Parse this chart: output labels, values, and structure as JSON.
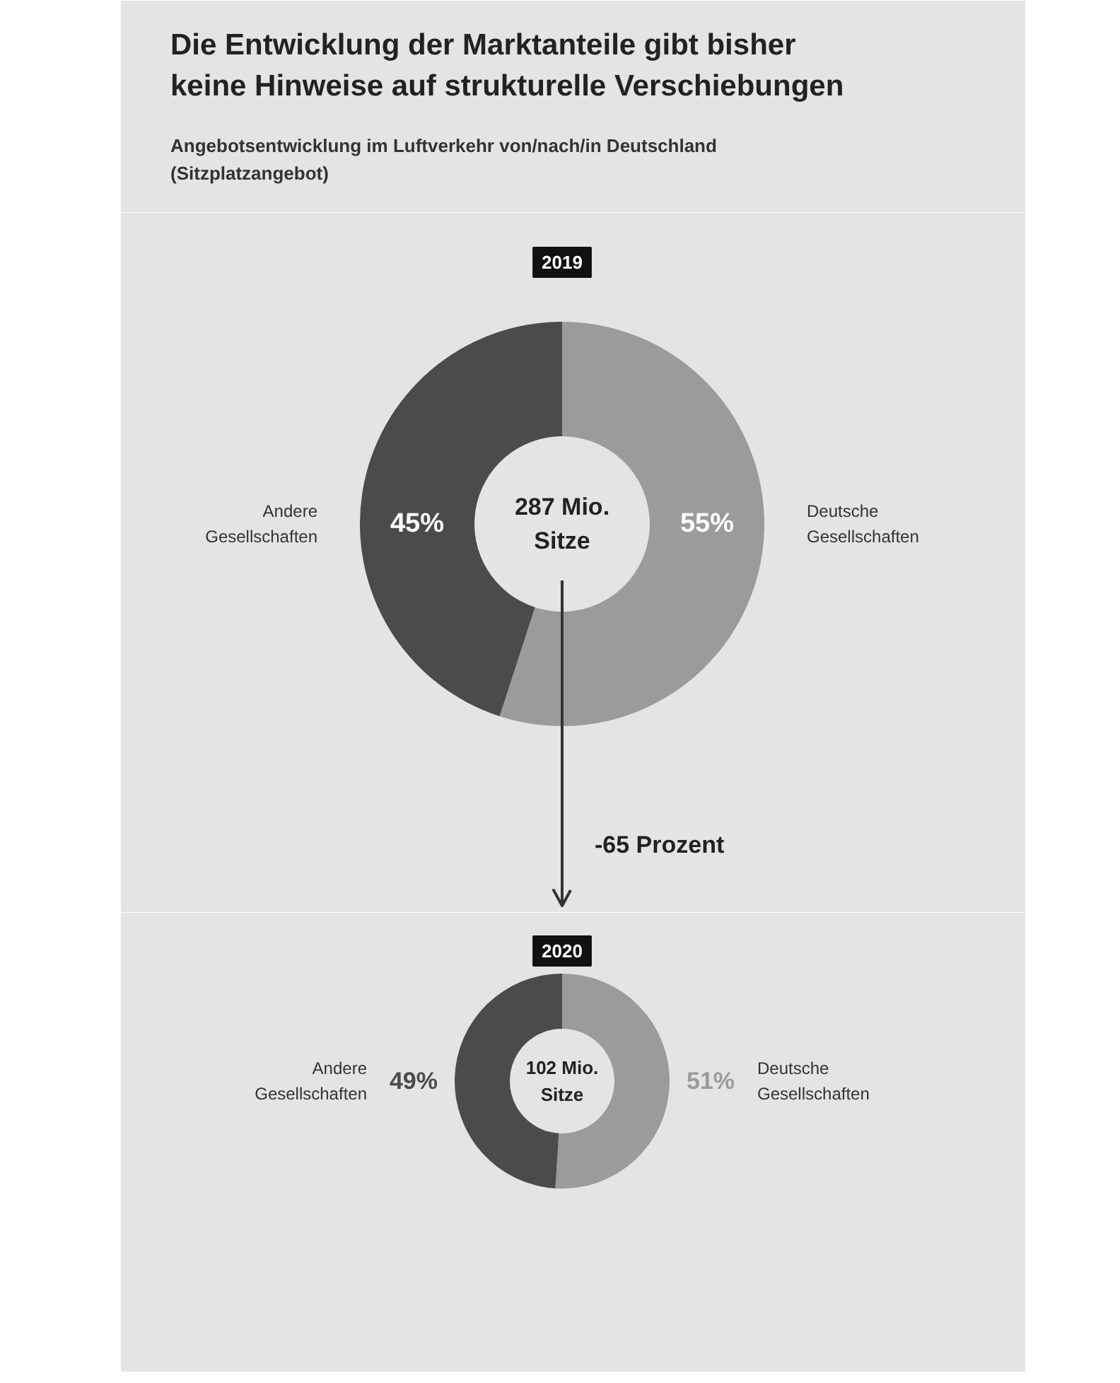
{
  "chart_data": [
    {
      "type": "other",
      "title": "Die Entwicklung der Marktanteile gibt bisher keine Hinweise auf strukturelle Verschiebungen",
      "subtitle": "Angebotsentwicklung im Luftverkehr von/nach/in Deutschland (Sitzplatzangebot)"
    },
    {
      "type": "donut",
      "title": "2019",
      "categories": [
        "Deutsche Gesellschaften",
        "Andere Gesellschaften"
      ],
      "values": [
        55,
        45
      ],
      "colors": [
        "#9b9b9b",
        "#4b4b4b"
      ],
      "value_labels": [
        "55%",
        "45%"
      ],
      "annotations": [
        "287 Mio. Sitze",
        "-65 Prozent"
      ]
    },
    {
      "type": "donut",
      "title": "2020",
      "categories": [
        "Deutsche Gesellschaften",
        "Andere Gesellschaften"
      ],
      "values": [
        51,
        49
      ],
      "colors": [
        "#9b9b9b",
        "#4b4b4b"
      ],
      "value_labels": [
        "51%",
        "49%"
      ],
      "annotations": [
        "102 Mio. Sitze"
      ]
    }
  ]
}
